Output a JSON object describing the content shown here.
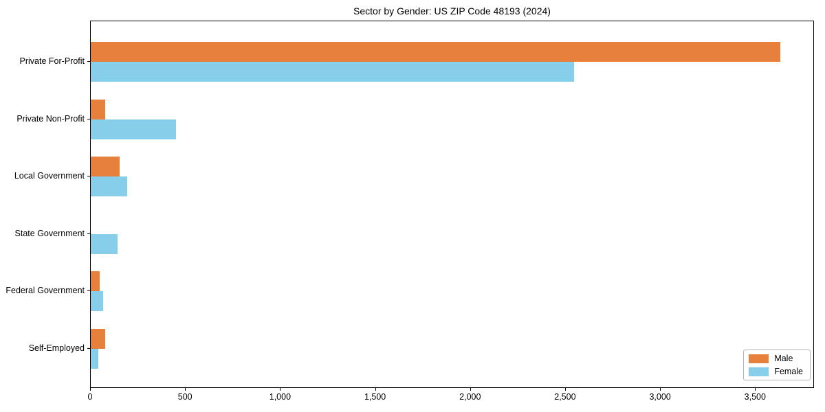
{
  "chart_data": {
    "type": "bar",
    "orientation": "horizontal",
    "title": "Sector by Gender: US ZIP Code 48193 (2024)",
    "categories": [
      "Private For-Profit",
      "Private Non-Profit",
      "Local Government",
      "State Government",
      "Federal Government",
      "Self-Employed"
    ],
    "series": [
      {
        "name": "Male",
        "color": "#e8803d",
        "values": [
          3630,
          77,
          150,
          0,
          46,
          76
        ]
      },
      {
        "name": "Female",
        "color": "#87ceeb",
        "values": [
          2545,
          447,
          193,
          141,
          66,
          40
        ]
      }
    ],
    "xlabel": "",
    "ylabel": "",
    "xlim": [
      0,
      3810
    ],
    "xticks": {
      "values": [
        0,
        500,
        1000,
        1500,
        2000,
        2500,
        3000,
        3500
      ],
      "labels": [
        "0",
        "500",
        "1,000",
        "1,500",
        "2,000",
        "2,500",
        "3,000",
        "3,500"
      ]
    },
    "grid": false,
    "legend": {
      "position": "lower right"
    }
  }
}
